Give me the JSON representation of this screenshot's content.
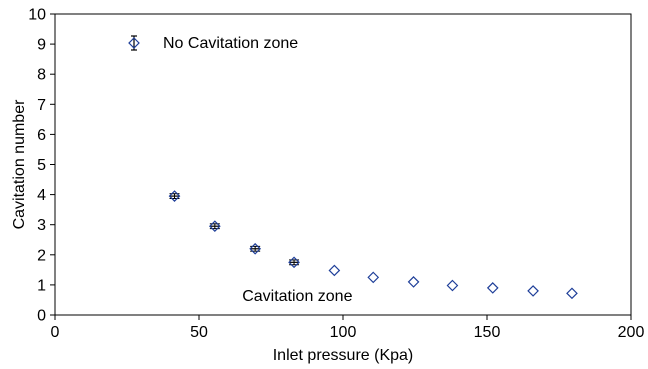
{
  "chart_data": {
    "type": "scatter",
    "title": "",
    "xlabel": "Inlet pressure (Kpa)",
    "ylabel": "Cavitation number",
    "xlim": [
      0,
      200
    ],
    "ylim": [
      0,
      10
    ],
    "x_ticks": [
      "0",
      "50",
      "100",
      "150",
      "200"
    ],
    "y_ticks": [
      "0",
      "1",
      "2",
      "3",
      "4",
      "5",
      "6",
      "7",
      "8",
      "9",
      "10"
    ],
    "grid": false,
    "legend_position": "top-left",
    "marker": "diamond-open",
    "marker_color": "#1f3f99",
    "series": [
      {
        "name": "",
        "x": [
          41.5,
          55.5,
          69.5,
          83.0,
          97.0,
          110.5,
          124.5,
          138.0,
          152.0,
          166.0,
          179.5
        ],
        "y": [
          3.95,
          2.95,
          2.2,
          1.75,
          1.48,
          1.25,
          1.1,
          0.98,
          0.9,
          0.8,
          0.72
        ],
        "error": [
          0.08,
          0.08,
          0.08,
          0.08,
          0,
          0,
          0,
          0,
          0,
          0,
          0
        ]
      }
    ],
    "annotations": [
      {
        "text": "No Cavitation zone",
        "x": 37,
        "y": 9.0
      },
      {
        "text": "Cavitation zone",
        "x": 65,
        "y": 0.5
      }
    ]
  }
}
